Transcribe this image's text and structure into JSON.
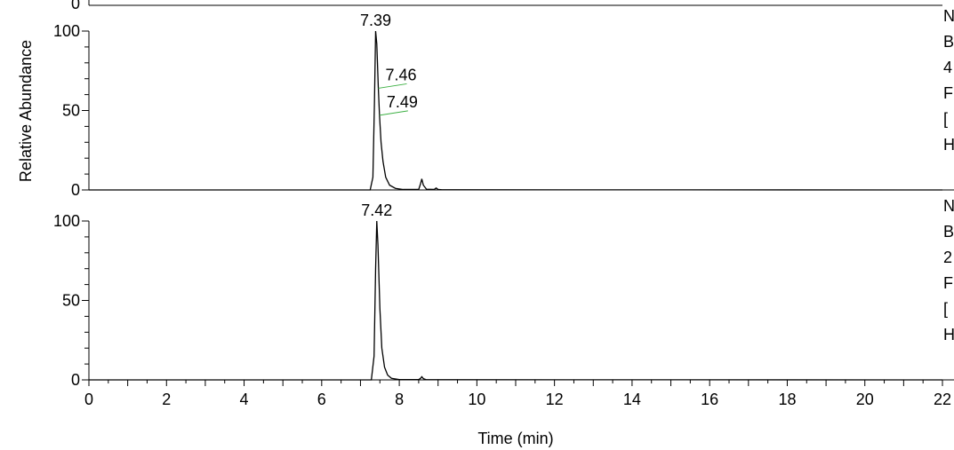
{
  "chart_data": {
    "type": "line",
    "xlabel": "Time (min)",
    "ylabel": "Relative Abundance",
    "xlim": [
      0,
      22
    ],
    "x_ticks": [
      "0",
      "2",
      "4",
      "6",
      "8",
      "10",
      "12",
      "14",
      "16",
      "18",
      "20",
      "22"
    ],
    "line_color": "#000000",
    "annotation_color": "#3cb043",
    "panels": [
      {
        "ylim": [
          0,
          100
        ],
        "y_ticks": [
          "0",
          "50",
          "100"
        ],
        "side_labels": [
          "N",
          "B",
          "4",
          "F",
          "[",
          "H"
        ],
        "peak_label": "7.39",
        "peak_x": 7.39,
        "peak_y": 100,
        "annotations": [
          {
            "label": "7.46",
            "x": 7.46,
            "y": 64
          },
          {
            "label": "7.49",
            "x": 7.49,
            "y": 47
          }
        ],
        "series": [
          {
            "x": [
              0,
              6.5,
              7.25,
              7.32,
              7.36,
              7.39,
              7.42,
              7.46,
              7.49,
              7.53,
              7.58,
              7.65,
              7.75,
              7.9,
              8.1,
              8.5,
              8.55,
              8.58,
              8.62,
              8.7,
              8.9,
              8.95,
              9.0,
              9.1,
              22
            ],
            "y": [
              0,
              0,
              0,
              8,
              55,
              100,
              92,
              64,
              47,
              30,
              18,
              8,
              3,
              1,
              0.3,
              0.3,
              4,
              7,
              3,
              0.5,
              0.3,
              1.2,
              0.3,
              0.1,
              0
            ]
          }
        ]
      },
      {
        "ylim": [
          0,
          100
        ],
        "y_ticks": [
          "0",
          "50",
          "100"
        ],
        "side_labels": [
          "N",
          "B",
          "2",
          "F",
          "[",
          "H"
        ],
        "peak_label": "7.42",
        "peak_x": 7.42,
        "peak_y": 100,
        "annotations": [],
        "series": [
          {
            "x": [
              0,
              6.5,
              7.28,
              7.35,
              7.39,
              7.42,
              7.45,
              7.5,
              7.55,
              7.62,
              7.7,
              7.8,
              8.0,
              8.5,
              8.55,
              8.58,
              8.62,
              8.7,
              22
            ],
            "y": [
              0,
              0,
              0,
              15,
              70,
              100,
              85,
              45,
              20,
              8,
              3,
              1,
              0.2,
              0.2,
              1,
              2,
              0.8,
              0.1,
              0
            ]
          }
        ]
      }
    ]
  }
}
